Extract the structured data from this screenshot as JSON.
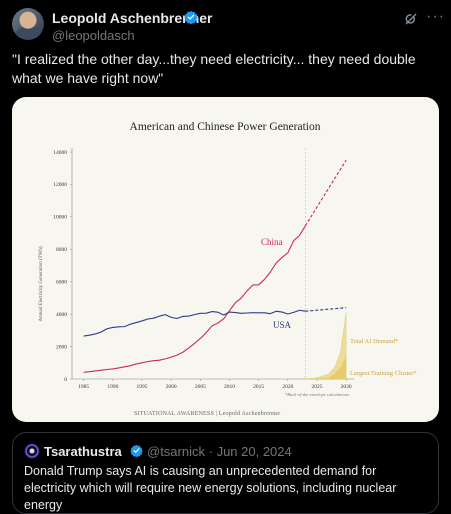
{
  "author": {
    "name": "Leopold Aschenbrenner",
    "handle": "@leopoldasch"
  },
  "tweet": {
    "text": "\"I realized the other day...they need electricity... they need double what we have right now\""
  },
  "quote": {
    "name": "Tsarathustra",
    "handle": "@tsarnick",
    "date": "· Jun 20, 2024",
    "text": "Donald Trump says AI is causing an unprecedented demand for electricity which will require new energy solutions, including nuclear energy"
  },
  "icons": [
    "verified-badge-icon",
    "grok-icon",
    "more-icon"
  ],
  "colors": {
    "background": "#000000",
    "verified": "#1d9bf0",
    "china": "#cc2a55",
    "usa": "#2c3c8c",
    "ai": "#d8c25a"
  },
  "chart_data": {
    "type": "line",
    "title": "American and Chinese Power Generation",
    "xlabel": "",
    "ylabel": "Annual Electricity Generation (TWh)",
    "xlim": [
      1983,
      2031
    ],
    "ylim": [
      0,
      14000
    ],
    "x_ticks": [
      1985,
      1990,
      1995,
      2000,
      2005,
      2010,
      2015,
      2020,
      2025,
      2030
    ],
    "y_ticks": [
      0,
      2000,
      4000,
      6000,
      8000,
      10000,
      12000,
      14000
    ],
    "grid": false,
    "series": [
      {
        "name": "China",
        "color": "#cc2a55",
        "x": [
          1985,
          1986,
          1987,
          1988,
          1989,
          1990,
          1991,
          1992,
          1993,
          1994,
          1995,
          1996,
          1997,
          1998,
          1999,
          2000,
          2001,
          2002,
          2003,
          2004,
          2005,
          2006,
          2007,
          2008,
          2009,
          2010,
          2011,
          2012,
          2013,
          2014,
          2015,
          2016,
          2017,
          2018,
          2019,
          2020,
          2021,
          2022,
          2023
        ],
        "y": [
          410,
          450,
          500,
          545,
          585,
          620,
          680,
          750,
          820,
          930,
          1000,
          1080,
          1130,
          1160,
          1240,
          1350,
          1470,
          1650,
          1910,
          2190,
          2500,
          2860,
          3280,
          3450,
          3710,
          4210,
          4700,
          4990,
          5430,
          5800,
          5810,
          6140,
          6600,
          7150,
          7500,
          7780,
          8530,
          8850,
          9450
        ],
        "projection": {
          "x": [
            2023,
            2030
          ],
          "y": [
            9450,
            13500
          ]
        }
      },
      {
        "name": "USA",
        "color": "#2c3c8c",
        "x": [
          1985,
          1986,
          1987,
          1988,
          1989,
          1990,
          1991,
          1992,
          1993,
          1994,
          1995,
          1996,
          1997,
          1998,
          1999,
          2000,
          2001,
          2002,
          2003,
          2004,
          2005,
          2006,
          2007,
          2008,
          2009,
          2010,
          2011,
          2012,
          2013,
          2014,
          2015,
          2016,
          2017,
          2018,
          2019,
          2020,
          2021,
          2022,
          2023
        ],
        "y": [
          2650,
          2700,
          2780,
          2900,
          3100,
          3180,
          3220,
          3230,
          3380,
          3480,
          3580,
          3700,
          3750,
          3880,
          3970,
          3800,
          3730,
          3860,
          3880,
          3970,
          4050,
          4060,
          4160,
          4120,
          3950,
          4130,
          4100,
          4050,
          4070,
          4090,
          4080,
          4080,
          4030,
          4180,
          4130,
          4010,
          4110,
          4240,
          4180
        ],
        "projection": {
          "x": [
            2023,
            2030
          ],
          "y": [
            4180,
            4400
          ]
        }
      }
    ],
    "ai_projection": {
      "x": [
        2023,
        2025,
        2027,
        2028,
        2029,
        2030
      ],
      "total_ai_demand": [
        0,
        80,
        300,
        700,
        1600,
        4100
      ],
      "largest_training_cluster": [
        0,
        20,
        100,
        300,
        700,
        1400
      ]
    },
    "annotations": {
      "china_label": "China",
      "usa_label": "USA",
      "ai_total_label": "Total AI Demand*",
      "ai_cluster_label": "Largest Training Cluster*",
      "footnote": "*Back-of-the-envelope calculations.",
      "source": "SITUATIONAL AWARENESS | Leopold Aschenbrenner"
    }
  }
}
